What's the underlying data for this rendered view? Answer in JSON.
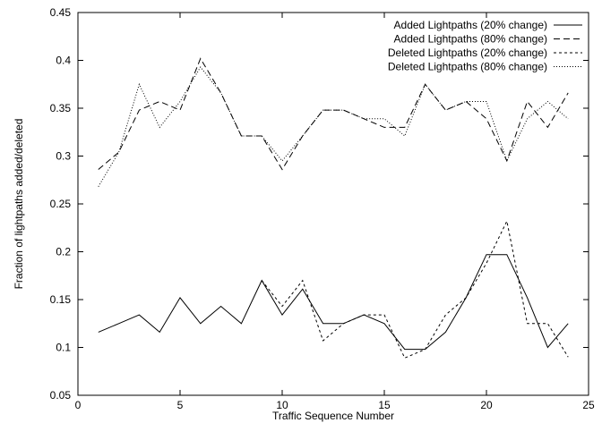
{
  "chart_data": {
    "type": "line",
    "title": "",
    "xlabel": "Traffic Sequence Number",
    "ylabel": "Fraction of lightpaths added/deleted",
    "xlim": [
      0,
      25
    ],
    "ylim": [
      0.05,
      0.45
    ],
    "xticks": [
      0,
      5,
      10,
      15,
      20,
      25
    ],
    "yticks": [
      0.05,
      0.1,
      0.15,
      0.2,
      0.25,
      0.3,
      0.35,
      0.4,
      0.45
    ],
    "xtick_labels": [
      "0",
      "5",
      "10",
      "15",
      "20",
      "25"
    ],
    "ytick_labels": [
      "0.05",
      "0.1",
      "0.15",
      "0.2",
      "0.25",
      "0.3",
      "0.35",
      "0.4",
      "0.45"
    ],
    "grid": false,
    "legend_position": "top-right",
    "x": [
      1,
      2,
      3,
      4,
      5,
      6,
      7,
      8,
      9,
      10,
      11,
      12,
      13,
      14,
      15,
      16,
      17,
      18,
      19,
      20,
      21,
      22,
      23,
      24
    ],
    "series": [
      {
        "name": "Added Lightpaths (20% change)",
        "dash": "",
        "values": [
          0.116,
          0.125,
          0.134,
          0.116,
          0.152,
          0.125,
          0.143,
          0.125,
          0.17,
          0.134,
          0.161,
          0.125,
          0.125,
          0.134,
          0.125,
          0.098,
          0.098,
          0.116,
          0.152,
          0.197,
          0.197,
          0.152,
          0.1,
          0.125
        ]
      },
      {
        "name": "Added Lightpaths (80% change)",
        "dash": "7,4",
        "values": [
          0.286,
          0.304,
          0.348,
          0.357,
          0.348,
          0.402,
          0.366,
          0.321,
          0.321,
          0.286,
          0.321,
          0.348,
          0.348,
          0.339,
          0.33,
          0.33,
          0.375,
          0.348,
          0.357,
          0.339,
          0.295,
          0.357,
          0.33,
          0.366
        ]
      },
      {
        "name": "Deleted Lightpaths (20% change)",
        "dash": "3,3",
        "values": [
          null,
          null,
          null,
          null,
          null,
          null,
          null,
          null,
          0.17,
          0.143,
          0.17,
          0.107,
          0.125,
          0.134,
          0.134,
          0.089,
          0.098,
          0.134,
          0.152,
          0.188,
          0.232,
          0.125,
          0.125,
          0.09
        ]
      },
      {
        "name": "Deleted Lightpaths (80% change)",
        "dash": "1,2",
        "values": [
          0.268,
          0.304,
          0.375,
          0.33,
          0.357,
          0.393,
          0.366,
          0.321,
          0.321,
          0.295,
          0.321,
          0.348,
          0.348,
          0.339,
          0.339,
          0.321,
          0.375,
          0.348,
          0.357,
          0.357,
          0.295,
          0.339,
          0.357,
          0.339
        ]
      }
    ]
  }
}
